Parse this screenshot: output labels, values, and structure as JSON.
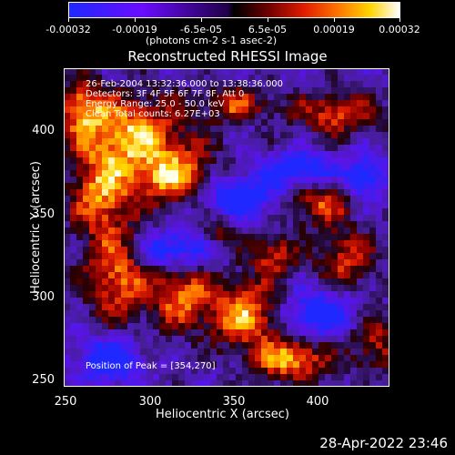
{
  "colorbar": {
    "tick_labels": [
      "-0.00032",
      "-0.00019",
      "-6.5e-05",
      "6.5e-05",
      "0.00019",
      "0.00032"
    ],
    "units": "(photons cm-2 s-1 asec-2)",
    "colors": [
      "#1e28ff",
      "#6a0cff",
      "#200048",
      "#000000",
      "#6b0000",
      "#e01b00",
      "#ff7b00",
      "#ffd400",
      "#ffffff"
    ]
  },
  "title": "Reconstructed RHESSI Image",
  "annotations": {
    "line1": "26-Feb-2004 13:32:36.000 to 13:38:36.000",
    "line2": "Detectors: 3F 4F 5F 6F 7F 8F, Att 0",
    "line3": "Energy Range: 25.0 - 50.0 keV",
    "line4": "Clean    Total counts: 6.27E+03",
    "peak": "Position of Peak = [354,270]"
  },
  "axes": {
    "xlabel": "Heliocentric X (arcsec)",
    "ylabel": "Heliocentric Y (arcsec)",
    "x_ticks": [
      "250",
      "300",
      "350",
      "400"
    ],
    "y_ticks": [
      "400",
      "350",
      "300",
      "250"
    ]
  },
  "timestamp": "28-Apr-2022 23:46"
}
